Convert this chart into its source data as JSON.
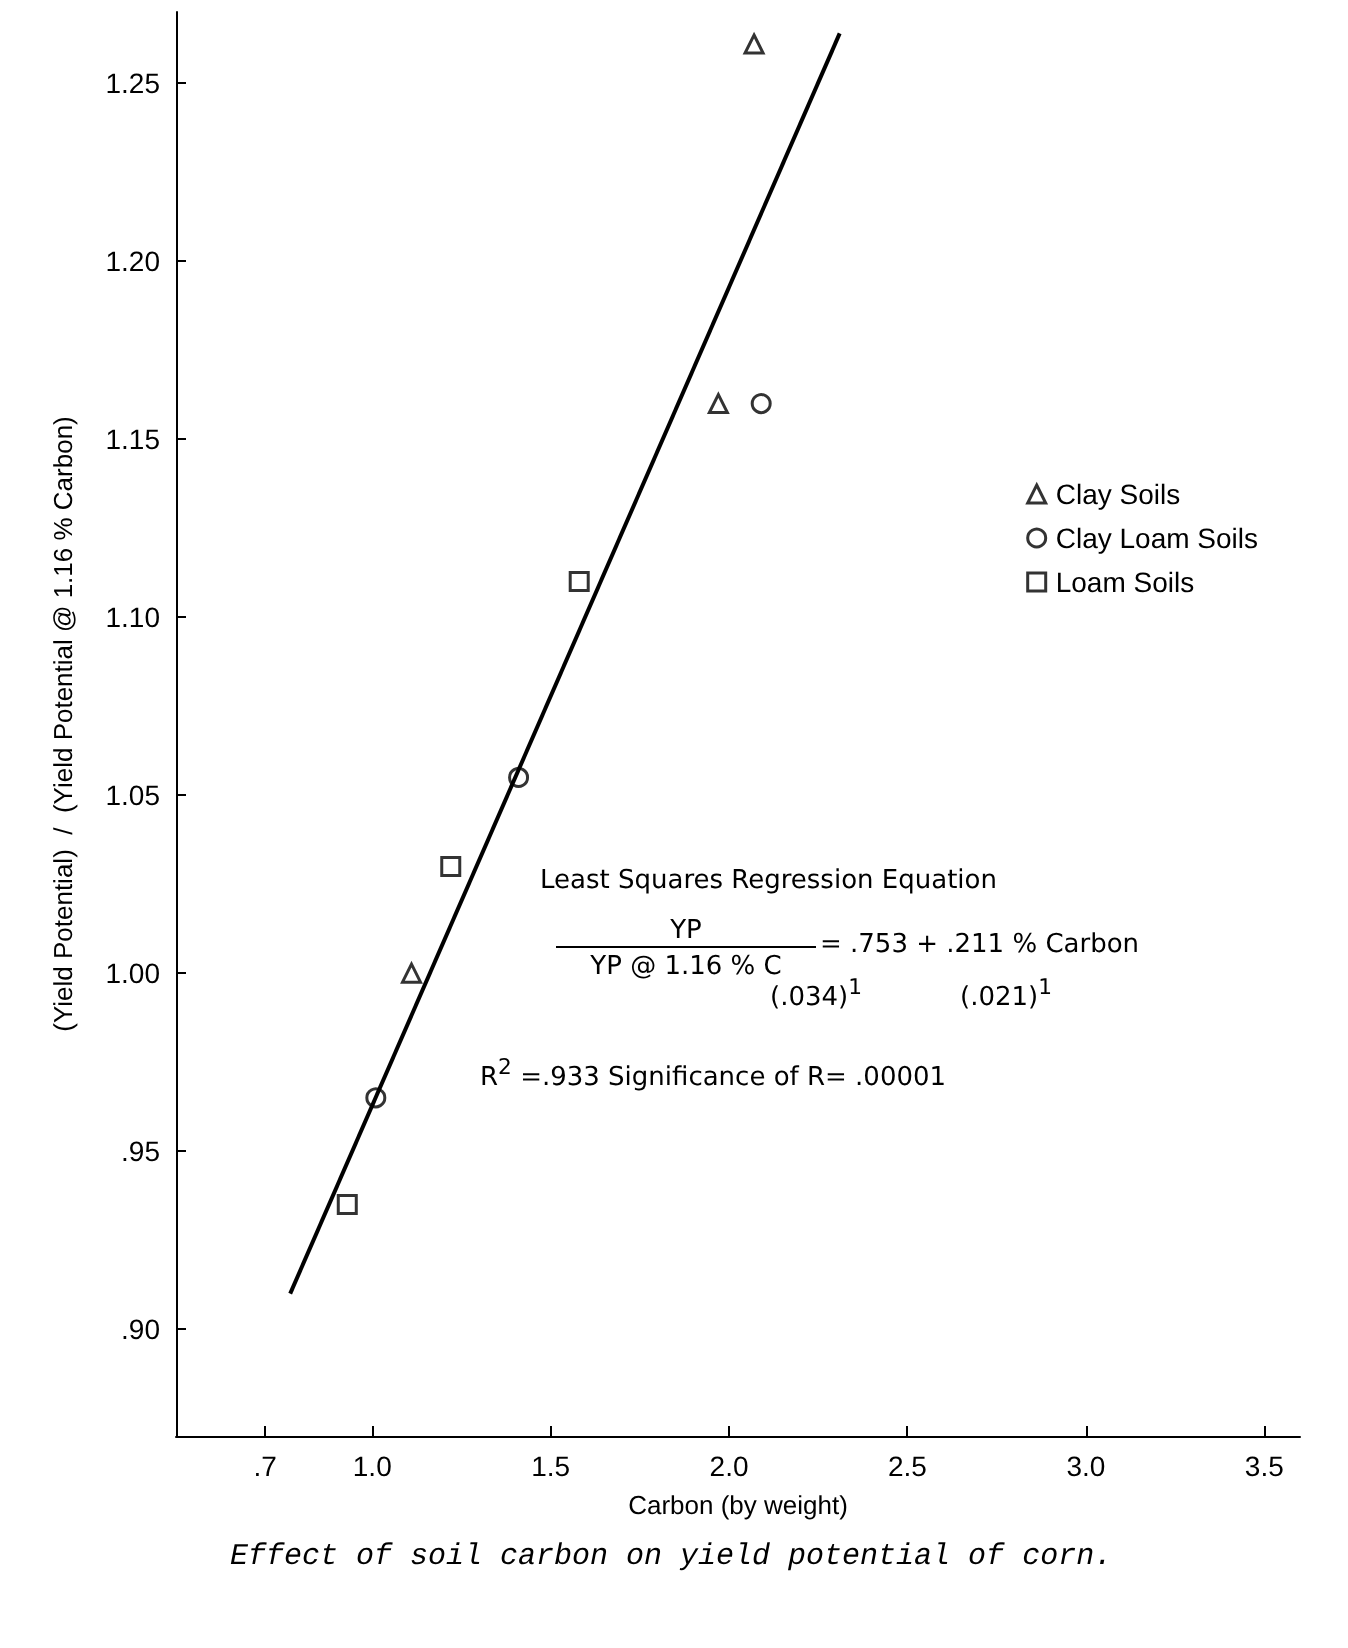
{
  "chart_data": {
    "type": "scatter",
    "xlabel": "Carbon (by weight)",
    "ylabel": "(Yield Potential)  /  (Yield Potential @ 1.16 % Carbon)",
    "xlim": [
      0.45,
      3.6
    ],
    "ylim": [
      0.87,
      1.27
    ],
    "xticks": [
      {
        "value": 0.7,
        "label": ".7"
      },
      {
        "value": 1.0,
        "label": "1.0"
      },
      {
        "value": 1.5,
        "label": "1.5"
      },
      {
        "value": 2.0,
        "label": "2.0"
      },
      {
        "value": 2.5,
        "label": "2.5"
      },
      {
        "value": 3.0,
        "label": "3.0"
      },
      {
        "value": 3.5,
        "label": "3.5"
      }
    ],
    "yticks": [
      {
        "value": 0.9,
        "label": ".90"
      },
      {
        "value": 0.95,
        "label": ".95"
      },
      {
        "value": 1.0,
        "label": "1.00"
      },
      {
        "value": 1.05,
        "label": "1.05"
      },
      {
        "value": 1.1,
        "label": "1.10"
      },
      {
        "value": 1.15,
        "label": "1.15"
      },
      {
        "value": 1.2,
        "label": "1.20"
      },
      {
        "value": 1.25,
        "label": "1.25"
      }
    ],
    "series": [
      {
        "name": "Clay Soils",
        "color": "#000000",
        "marker": "triangle",
        "x": [
          2.07,
          1.97,
          1.11
        ],
        "values": [
          1.261,
          1.16,
          1.0
        ]
      },
      {
        "name": "Clay Loam Soils",
        "color": "#000000",
        "marker": "circle",
        "x": [
          2.09,
          1.41,
          1.01
        ],
        "values": [
          1.16,
          1.055,
          0.965
        ]
      },
      {
        "name": "Loam Soils",
        "color": "#000000",
        "marker": "square",
        "x": [
          1.58,
          1.22,
          0.93
        ],
        "values": [
          1.11,
          1.03,
          0.935
        ]
      },
      {
        "type": "line",
        "color": "#000000",
        "marker": "none",
        "x": [
          0.77,
          2.31
        ],
        "values": [
          0.91,
          1.264
        ]
      }
    ],
    "annotations": [
      "Least Squares Regression Equation",
      "YP",
      "YP @ 1.16 % C",
      "= .753 + .211 % Carbon",
      "(.034)$^{1}$",
      "(.021)$^{1}$",
      "R$^{2}$ =.933  Significance of R= .00001",
      "Effect of soil carbon on yield potential of corn."
    ],
    "grid": false,
    "legend": "right"
  }
}
